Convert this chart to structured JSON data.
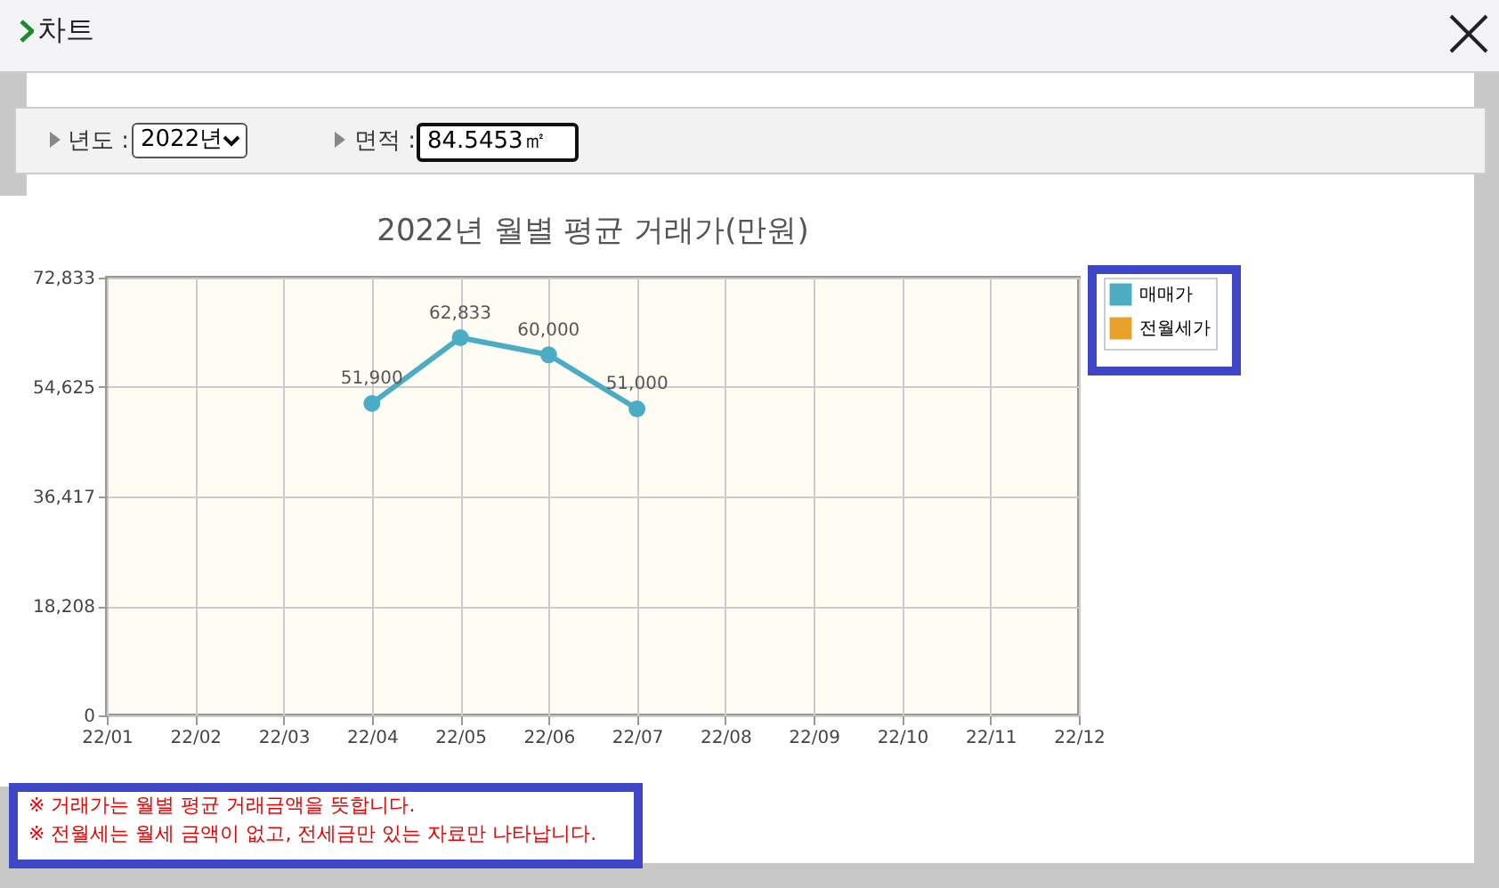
{
  "chart_data": {
    "type": "line",
    "title": "2022년 월별 평균 거래가(만원)",
    "categories": [
      "22/01",
      "22/02",
      "22/03",
      "22/04",
      "22/05",
      "22/06",
      "22/07",
      "22/08",
      "22/09",
      "22/10",
      "22/11",
      "22/12"
    ],
    "series": [
      {
        "name": "매매가",
        "color": "#4badc4",
        "values": [
          null,
          null,
          null,
          51900,
          62833,
          60000,
          51000,
          null,
          null,
          null,
          null,
          null
        ]
      },
      {
        "name": "전월세가",
        "color": "#e8a12a",
        "values": [
          null,
          null,
          null,
          null,
          null,
          null,
          null,
          null,
          null,
          null,
          null,
          null
        ]
      }
    ],
    "value_labels": [
      null,
      null,
      null,
      "51,900",
      "62,833",
      "60,000",
      "51,000",
      null,
      null,
      null,
      null,
      null
    ],
    "ylim": [
      0,
      72833
    ],
    "yticks": [
      0,
      {
        "value": 18208,
        "label": "18,208"
      },
      {
        "value": 36417,
        "label": "36,417"
      },
      {
        "value": 54625,
        "label": "54,625"
      },
      {
        "value": 72833,
        "label": "72,833"
      }
    ],
    "grid": true,
    "legend": "right",
    "marker": "circle",
    "annotations": [
      "차트",
      "년도 :",
      "2022년",
      "면적 :",
      "84.5453㎡",
      "※ 거래가는 월별 평균 거래금액을 뜻합니다.",
      "※ 전월세는 월세 금액이 없고, 전세금만 있는 자료만 나타납니다."
    ]
  }
}
